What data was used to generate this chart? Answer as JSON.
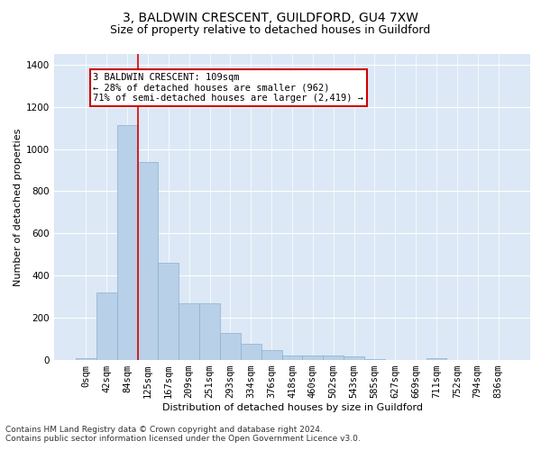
{
  "title": "3, BALDWIN CRESCENT, GUILDFORD, GU4 7XW",
  "subtitle": "Size of property relative to detached houses in Guildford",
  "xlabel": "Distribution of detached houses by size in Guildford",
  "ylabel": "Number of detached properties",
  "bar_labels": [
    "0sqm",
    "42sqm",
    "84sqm",
    "125sqm",
    "167sqm",
    "209sqm",
    "251sqm",
    "293sqm",
    "334sqm",
    "376sqm",
    "418sqm",
    "460sqm",
    "502sqm",
    "543sqm",
    "585sqm",
    "627sqm",
    "669sqm",
    "711sqm",
    "752sqm",
    "794sqm",
    "836sqm"
  ],
  "bar_values": [
    8,
    320,
    1115,
    940,
    460,
    270,
    270,
    130,
    78,
    48,
    20,
    22,
    20,
    15,
    5,
    0,
    0,
    10,
    0,
    0,
    0
  ],
  "bar_color": "#b8d0e8",
  "bar_edgecolor": "#8ab0d0",
  "vline_color": "#dd0000",
  "annotation_text": "3 BALDWIN CRESCENT: 109sqm\n← 28% of detached houses are smaller (962)\n71% of semi-detached houses are larger (2,419) →",
  "annotation_box_color": "#ffffff",
  "annotation_box_edgecolor": "#cc0000",
  "ylim": [
    0,
    1450
  ],
  "yticks": [
    0,
    200,
    400,
    600,
    800,
    1000,
    1200,
    1400
  ],
  "background_color": "#dce8f5",
  "footer_line1": "Contains HM Land Registry data © Crown copyright and database right 2024.",
  "footer_line2": "Contains public sector information licensed under the Open Government Licence v3.0.",
  "title_fontsize": 10,
  "subtitle_fontsize": 9,
  "xlabel_fontsize": 8,
  "ylabel_fontsize": 8,
  "annotation_fontsize": 7.5,
  "footer_fontsize": 6.5,
  "tick_fontsize": 7.5
}
